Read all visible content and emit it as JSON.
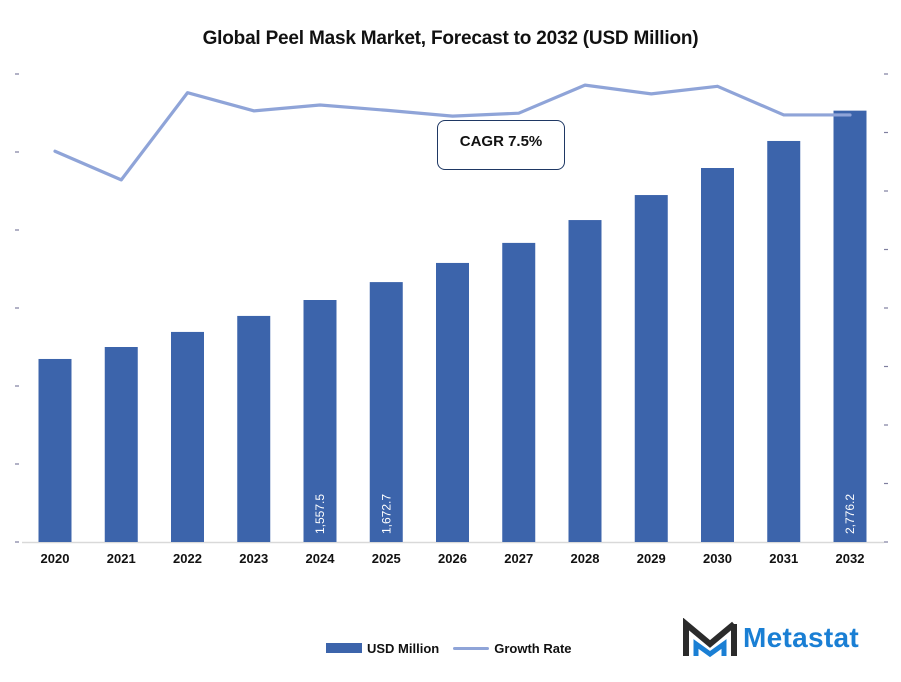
{
  "chart_data": {
    "type": "bar",
    "title": "Global Peel Mask Market, Forecast to 2032 (USD Million)",
    "xlabel": "",
    "ylabel": "",
    "categories": [
      "2020",
      "2021",
      "2022",
      "2023",
      "2024",
      "2025",
      "2026",
      "2027",
      "2028",
      "2029",
      "2030",
      "2031",
      "2032"
    ],
    "series": [
      {
        "name": "USD Million",
        "type": "bar",
        "color": "#3c64ab",
        "axis": "left",
        "values": [
          1178,
          1255,
          1352,
          1455,
          1557.5,
          1672.7,
          1796,
          1925,
          2072,
          2233,
          2407,
          2581,
          2776.2
        ],
        "data_labels": {
          "2024": "1,557.5",
          "2025": "1,672.7",
          "2032": "2,776.2"
        }
      },
      {
        "name": "Growth Rate",
        "type": "line",
        "color": "#8fa4d8",
        "axis": "right",
        "values": [
          6.68,
          6.19,
          7.68,
          7.37,
          7.47,
          7.38,
          7.28,
          7.33,
          7.81,
          7.66,
          7.79,
          7.3,
          7.3
        ]
      }
    ],
    "ylim": [
      0,
      3000
    ],
    "y2lim": [
      0,
      8
    ],
    "left_axis_tick_count": 7,
    "right_axis_tick_count": 9,
    "tick_labels_shown": false,
    "grid": false,
    "legend": {
      "position": "bottom",
      "entries": [
        "USD Million",
        "Growth Rate"
      ]
    },
    "annotations": [
      {
        "text": "CAGR 7.5%",
        "position": "top-center"
      }
    ]
  },
  "annotation": {
    "cagr": "CAGR 7.5%"
  },
  "legend": {
    "bar_label": "USD Million",
    "line_label": "Growth Rate"
  },
  "branding": {
    "logo_text": "Metastat",
    "logo_icon": "metastat-m-icon",
    "brand_color": "#1a7fd4"
  }
}
